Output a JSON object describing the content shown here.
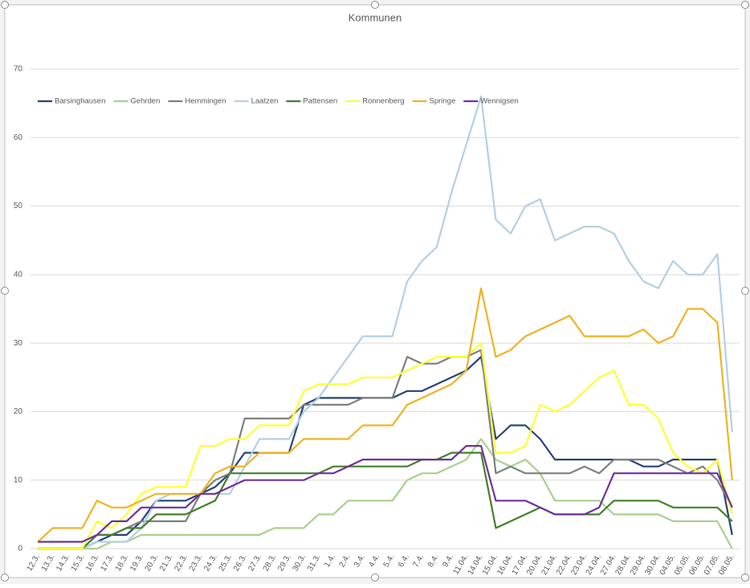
{
  "chart_data": {
    "type": "line",
    "title": "Kommunen",
    "categories": [
      "12.3.",
      "13.3.",
      "14.3.",
      "15.3.",
      "16.3.",
      "17.3.",
      "18.3.",
      "19.3.",
      "20.3.",
      "21.3.",
      "22.3.",
      "23.3.",
      "24.3.",
      "25.3.",
      "26.3.",
      "27.3.",
      "28.3.",
      "29.3.",
      "30.3.",
      "31.3.",
      "1.4.",
      "2.4.",
      "3.4.",
      "4.4.",
      "5.4.",
      "6.4.",
      "7.4.",
      "8.4.",
      "9.4.",
      "11.04.",
      "14.04.",
      "15.04.",
      "16.04.",
      "17.04.",
      "20.04.",
      "21.04.",
      "22.04.",
      "23.04.",
      "24.04.",
      "27.04.",
      "28.04.",
      "29.04.",
      "30.04.",
      "04.05.",
      "05.05.",
      "06.05.",
      "07.05.",
      "08.05."
    ],
    "series": [
      {
        "name": "Barsinghausen",
        "color": "#264478",
        "values": [
          0,
          0,
          0,
          0,
          1,
          2,
          2,
          4,
          7,
          7,
          7,
          8,
          9,
          11,
          14,
          14,
          14,
          14,
          21,
          22,
          22,
          22,
          22,
          22,
          22,
          23,
          23,
          24,
          25,
          26,
          28,
          16,
          18,
          18,
          16,
          13,
          13,
          13,
          13,
          13,
          13,
          12,
          12,
          13,
          13,
          13,
          13,
          2
        ]
      },
      {
        "name": "Gehrden",
        "color": "#a9d18e",
        "values": [
          0,
          0,
          0,
          0,
          0,
          1,
          1,
          2,
          2,
          2,
          2,
          2,
          2,
          2,
          2,
          2,
          3,
          3,
          3,
          5,
          5,
          7,
          7,
          7,
          7,
          10,
          11,
          11,
          12,
          13,
          16,
          13,
          12,
          13,
          11,
          7,
          7,
          7,
          7,
          5,
          5,
          5,
          5,
          4,
          4,
          4,
          4,
          0
        ]
      },
      {
        "name": "Hemmingen",
        "color": "#7f7f7f",
        "values": [
          0,
          0,
          0,
          0,
          2,
          2,
          3,
          4,
          4,
          4,
          4,
          8,
          10,
          11,
          19,
          19,
          19,
          19,
          21,
          21,
          21,
          21,
          22,
          22,
          22,
          28,
          27,
          27,
          28,
          28,
          29,
          11,
          12,
          11,
          11,
          11,
          11,
          12,
          11,
          13,
          13,
          13,
          13,
          12,
          11,
          12,
          10,
          6
        ]
      },
      {
        "name": "Laatzen",
        "color": "#b4cfe6",
        "values": [
          0,
          0,
          0,
          0,
          1,
          1,
          1,
          3,
          7,
          8,
          8,
          8,
          8,
          8,
          12,
          16,
          16,
          16,
          20,
          22,
          25,
          28,
          31,
          31,
          31,
          39,
          42,
          44,
          52,
          59,
          66,
          48,
          46,
          50,
          51,
          45,
          46,
          47,
          47,
          46,
          42,
          39,
          38,
          42,
          40,
          40,
          43,
          17
        ]
      },
      {
        "name": "Pattensen",
        "color": "#43802a",
        "values": [
          0,
          0,
          0,
          0,
          2,
          2,
          3,
          3,
          5,
          5,
          5,
          6,
          7,
          11,
          11,
          11,
          11,
          11,
          11,
          11,
          12,
          12,
          12,
          12,
          12,
          12,
          13,
          13,
          14,
          14,
          14,
          3,
          4,
          5,
          6,
          5,
          5,
          5,
          5,
          7,
          7,
          7,
          7,
          6,
          6,
          6,
          6,
          4
        ]
      },
      {
        "name": "Ronnenberg",
        "color": "#ffff33",
        "values": [
          0,
          0,
          0,
          0,
          4,
          3,
          5,
          8,
          9,
          9,
          9,
          15,
          15,
          16,
          16,
          18,
          18,
          18,
          23,
          24,
          24,
          24,
          25,
          25,
          25,
          26,
          27,
          28,
          28,
          28,
          30,
          14,
          14,
          15,
          21,
          20,
          21,
          23,
          25,
          26,
          21,
          21,
          19,
          14,
          12,
          11,
          13,
          5
        ]
      },
      {
        "name": "Springe",
        "color": "#f0b323",
        "values": [
          1,
          3,
          3,
          3,
          7,
          6,
          6,
          7,
          8,
          8,
          8,
          8,
          11,
          12,
          12,
          14,
          14,
          14,
          16,
          16,
          16,
          16,
          18,
          18,
          18,
          21,
          22,
          23,
          24,
          26,
          38,
          28,
          29,
          31,
          32,
          33,
          34,
          31,
          31,
          31,
          31,
          32,
          30,
          31,
          35,
          35,
          33,
          10
        ]
      },
      {
        "name": "Wennigsen",
        "color": "#7030a0",
        "values": [
          1,
          1,
          1,
          1,
          2,
          4,
          4,
          6,
          6,
          6,
          6,
          8,
          8,
          9,
          10,
          10,
          10,
          10,
          10,
          11,
          11,
          12,
          13,
          13,
          13,
          13,
          13,
          13,
          13,
          15,
          15,
          7,
          7,
          7,
          6,
          5,
          5,
          5,
          6,
          11,
          11,
          11,
          11,
          11,
          11,
          11,
          11,
          6
        ]
      }
    ],
    "ylim": [
      0,
      70
    ],
    "yticks": [
      0,
      10,
      20,
      30,
      40,
      50,
      60,
      70
    ],
    "grid": true,
    "legend": "top-left"
  }
}
